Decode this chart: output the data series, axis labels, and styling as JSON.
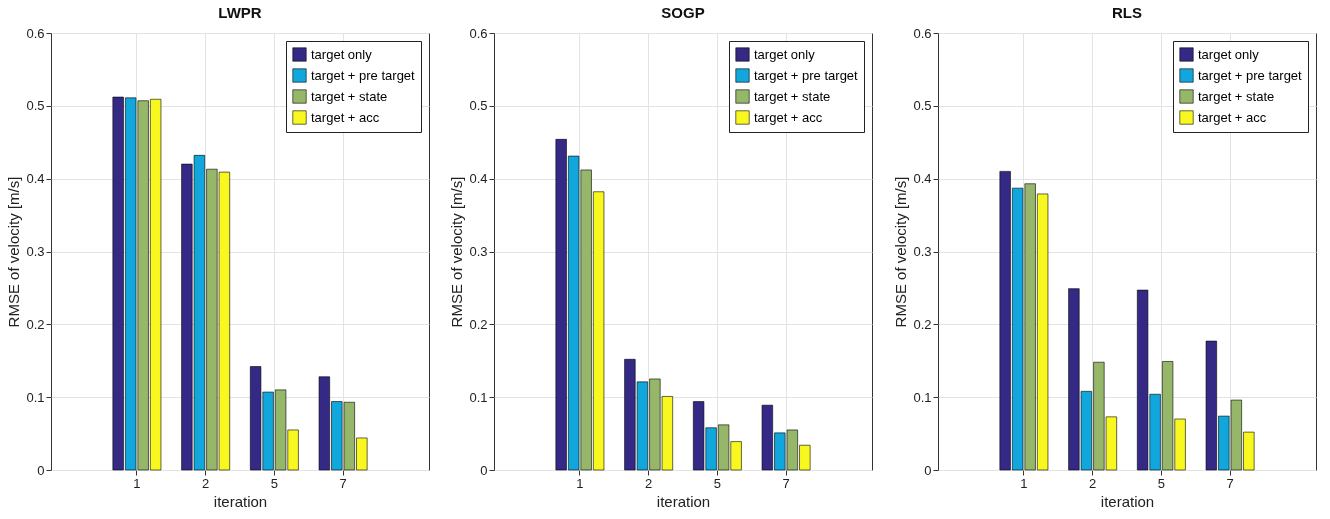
{
  "chart_data": [
    {
      "type": "bar",
      "title": "LWPR",
      "xlabel": "iteration",
      "ylabel": "RMSE of velocity [m/s]",
      "categories": [
        "1",
        "2",
        "5",
        "7"
      ],
      "ylim": [
        0,
        0.6
      ],
      "yticks": [
        0,
        0.1,
        0.2,
        0.3,
        0.4,
        0.5,
        0.6
      ],
      "grid": true,
      "legend": "top right",
      "series": [
        {
          "name": "target only",
          "color": "#342a86",
          "values": [
            0.512,
            0.42,
            0.142,
            0.128
          ]
        },
        {
          "name": "target + pre target",
          "color": "#11a6dc",
          "values": [
            0.511,
            0.432,
            0.107,
            0.094
          ]
        },
        {
          "name": "target + state",
          "color": "#96b66a",
          "values": [
            0.507,
            0.413,
            0.11,
            0.093
          ]
        },
        {
          "name": "target + acc",
          "color": "#f8f820",
          "values": [
            0.509,
            0.409,
            0.055,
            0.044
          ]
        }
      ]
    },
    {
      "type": "bar",
      "title": "SOGP",
      "xlabel": "iteration",
      "ylabel": "RMSE of velocity [m/s]",
      "categories": [
        "1",
        "2",
        "5",
        "7"
      ],
      "ylim": [
        0,
        0.6
      ],
      "yticks": [
        0,
        0.1,
        0.2,
        0.3,
        0.4,
        0.5,
        0.6
      ],
      "grid": true,
      "legend": "top right",
      "series": [
        {
          "name": "target only",
          "color": "#342a86",
          "values": [
            0.454,
            0.152,
            0.094,
            0.089
          ]
        },
        {
          "name": "target + pre target",
          "color": "#11a6dc",
          "values": [
            0.431,
            0.121,
            0.058,
            0.051
          ]
        },
        {
          "name": "target + state",
          "color": "#96b66a",
          "values": [
            0.412,
            0.125,
            0.062,
            0.055
          ]
        },
        {
          "name": "target + acc",
          "color": "#f8f820",
          "values": [
            0.382,
            0.101,
            0.039,
            0.034
          ]
        }
      ]
    },
    {
      "type": "bar",
      "title": "RLS",
      "xlabel": "iteration",
      "ylabel": "RMSE of velocity [m/s]",
      "categories": [
        "1",
        "2",
        "5",
        "7"
      ],
      "ylim": [
        0,
        0.6
      ],
      "yticks": [
        0,
        0.1,
        0.2,
        0.3,
        0.4,
        0.5,
        0.6
      ],
      "grid": true,
      "legend": "top right",
      "series": [
        {
          "name": "target only",
          "color": "#342a86",
          "values": [
            0.41,
            0.249,
            0.247,
            0.177
          ]
        },
        {
          "name": "target + pre target",
          "color": "#11a6dc",
          "values": [
            0.387,
            0.108,
            0.104,
            0.074
          ]
        },
        {
          "name": "target + state",
          "color": "#96b66a",
          "values": [
            0.393,
            0.148,
            0.149,
            0.096
          ]
        },
        {
          "name": "target + acc",
          "color": "#f8f820",
          "values": [
            0.379,
            0.073,
            0.07,
            0.052
          ]
        }
      ]
    }
  ]
}
